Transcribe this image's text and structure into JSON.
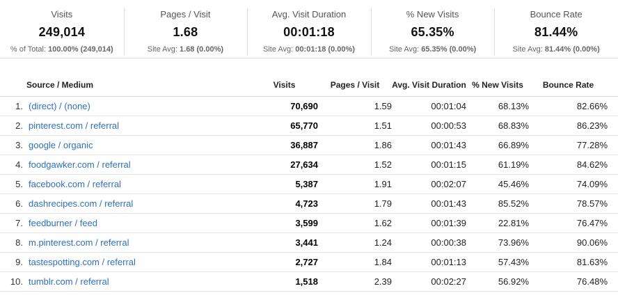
{
  "summary_cards": [
    {
      "label": "Visits",
      "value": "249,014",
      "sub_label": "% of Total:",
      "sub_value": "100.00%",
      "sub_delta": "(249,014)"
    },
    {
      "label": "Pages / Visit",
      "value": "1.68",
      "sub_label": "Site Avg:",
      "sub_value": "1.68",
      "sub_delta": "(0.00%)"
    },
    {
      "label": "Avg. Visit Duration",
      "value": "00:01:18",
      "sub_label": "Site Avg:",
      "sub_value": "00:01:18",
      "sub_delta": "(0.00%)"
    },
    {
      "label": "% New Visits",
      "value": "65.35%",
      "sub_label": "Site Avg:",
      "sub_value": "65.35%",
      "sub_delta": "(0.00%)"
    },
    {
      "label": "Bounce Rate",
      "value": "81.44%",
      "sub_label": "Site Avg:",
      "sub_value": "81.44%",
      "sub_delta": "(0.00%)"
    }
  ],
  "table": {
    "columns": [
      "Source / Medium",
      "Visits",
      "Pages / Visit",
      "Avg. Visit Duration",
      "% New Visits",
      "Bounce Rate"
    ],
    "rows": [
      {
        "rank": "1.",
        "source": "(direct) / (none)",
        "visits": "70,690",
        "pages_per_visit": "1.59",
        "avg_visit_duration": "00:01:04",
        "pct_new_visits": "68.13%",
        "bounce_rate": "82.66%"
      },
      {
        "rank": "2.",
        "source": "pinterest.com / referral",
        "visits": "65,770",
        "pages_per_visit": "1.51",
        "avg_visit_duration": "00:00:53",
        "pct_new_visits": "68.83%",
        "bounce_rate": "86.23%"
      },
      {
        "rank": "3.",
        "source": "google / organic",
        "visits": "36,887",
        "pages_per_visit": "1.86",
        "avg_visit_duration": "00:01:43",
        "pct_new_visits": "66.89%",
        "bounce_rate": "77.28%"
      },
      {
        "rank": "4.",
        "source": "foodgawker.com / referral",
        "visits": "27,634",
        "pages_per_visit": "1.52",
        "avg_visit_duration": "00:01:15",
        "pct_new_visits": "61.19%",
        "bounce_rate": "84.62%"
      },
      {
        "rank": "5.",
        "source": "facebook.com / referral",
        "visits": "5,387",
        "pages_per_visit": "1.91",
        "avg_visit_duration": "00:02:07",
        "pct_new_visits": "45.46%",
        "bounce_rate": "74.09%"
      },
      {
        "rank": "6.",
        "source": "dashrecipes.com / referral",
        "visits": "4,723",
        "pages_per_visit": "1.79",
        "avg_visit_duration": "00:01:43",
        "pct_new_visits": "85.52%",
        "bounce_rate": "78.57%"
      },
      {
        "rank": "7.",
        "source": "feedburner / feed",
        "visits": "3,599",
        "pages_per_visit": "1.62",
        "avg_visit_duration": "00:01:39",
        "pct_new_visits": "22.81%",
        "bounce_rate": "76.47%"
      },
      {
        "rank": "8.",
        "source": "m.pinterest.com / referral",
        "visits": "3,441",
        "pages_per_visit": "1.24",
        "avg_visit_duration": "00:00:38",
        "pct_new_visits": "73.96%",
        "bounce_rate": "90.06%"
      },
      {
        "rank": "9.",
        "source": "tastespotting.com / referral",
        "visits": "2,727",
        "pages_per_visit": "1.84",
        "avg_visit_duration": "00:01:13",
        "pct_new_visits": "57.43%",
        "bounce_rate": "81.63%"
      },
      {
        "rank": "10.",
        "source": "tumblr.com / referral",
        "visits": "1,518",
        "pages_per_visit": "2.39",
        "avg_visit_duration": "00:02:27",
        "pct_new_visits": "56.92%",
        "bounce_rate": "76.48%"
      }
    ]
  },
  "colors": {
    "link": "#2d71bd",
    "divider": "#e0e0e0",
    "row_separator": "#e6e6e6"
  }
}
